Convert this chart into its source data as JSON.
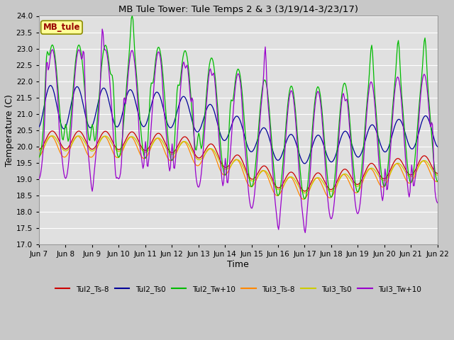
{
  "title": "MB Tule Tower: Tule Temps 2 & 3 (3/19/14-3/23/17)",
  "xlabel": "Time",
  "ylabel": "Temperature (C)",
  "ylim": [
    17.0,
    24.0
  ],
  "yticks": [
    17.0,
    17.5,
    18.0,
    18.5,
    19.0,
    19.5,
    20.0,
    20.5,
    21.0,
    21.5,
    22.0,
    22.5,
    23.0,
    23.5,
    24.0
  ],
  "xtick_labels": [
    "Jun 7",
    "Jun 8",
    "Jun 9",
    "Jun 10",
    "Jun 11",
    "Jun 12",
    "Jun 13",
    "Jun 14",
    "Jun 15",
    "Jun 16",
    "Jun 17",
    "Jun 18",
    "Jun 19",
    "Jun 20",
    "Jun 21",
    "Jun 22"
  ],
  "plot_bg": "#e0e0e0",
  "fig_bg": "#c8c8c8",
  "grid_color": "#ffffff",
  "legend_label": "MB_tule",
  "legend_bg": "#ffff99",
  "legend_border": "#cc0000",
  "series_colors": {
    "Tul2_Ts-8": "#cc0000",
    "Tul2_Ts0": "#000099",
    "Tul2_Tw+10": "#00bb00",
    "Tul3_Ts-8": "#ff8800",
    "Tul3_Ts0": "#cccc00",
    "Tul3_Tw+10": "#9900cc"
  }
}
